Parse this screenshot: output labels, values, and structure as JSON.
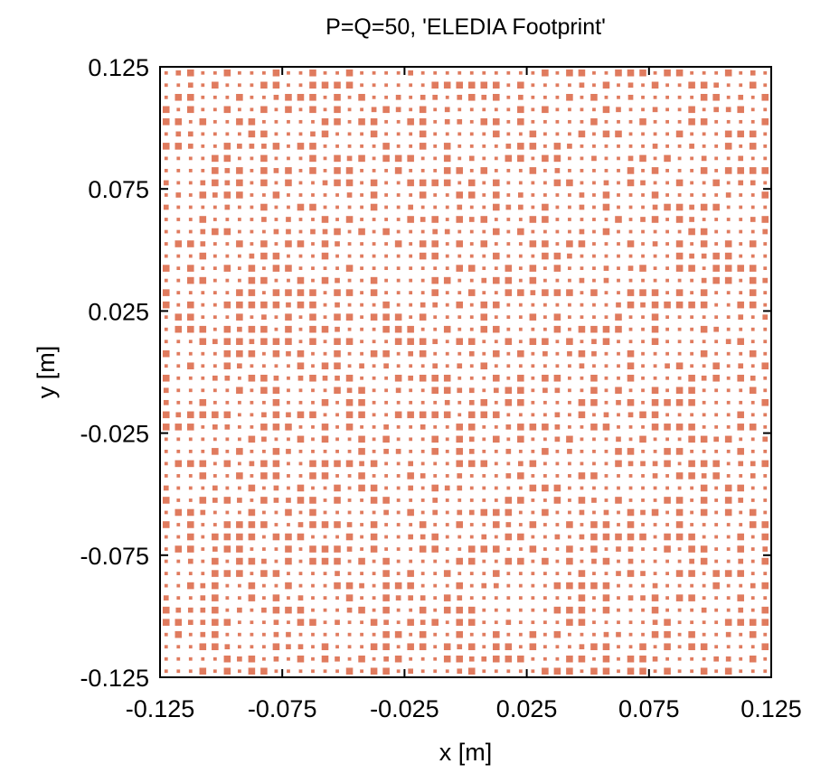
{
  "chart_data": {
    "type": "scatter",
    "title": "P=Q=50, 'ELEDIA Footprint'",
    "xlabel": "x [m]",
    "ylabel": "y [m]",
    "xlim": [
      -0.125,
      0.125
    ],
    "ylim": [
      -0.125,
      0.125
    ],
    "x_ticks": [
      "-0.125",
      "-0.075",
      "-0.025",
      "0.025",
      "0.075",
      "0.125"
    ],
    "y_ticks": [
      "-0.125",
      "-0.075",
      "-0.025",
      "0.025",
      "0.075",
      "0.125"
    ],
    "grid": false,
    "marker": "square",
    "marker_color": "#e07b5e",
    "grid_size": [
      50,
      50
    ],
    "element_spacing": 0.005,
    "element_min_coordinate": -0.1225
  }
}
